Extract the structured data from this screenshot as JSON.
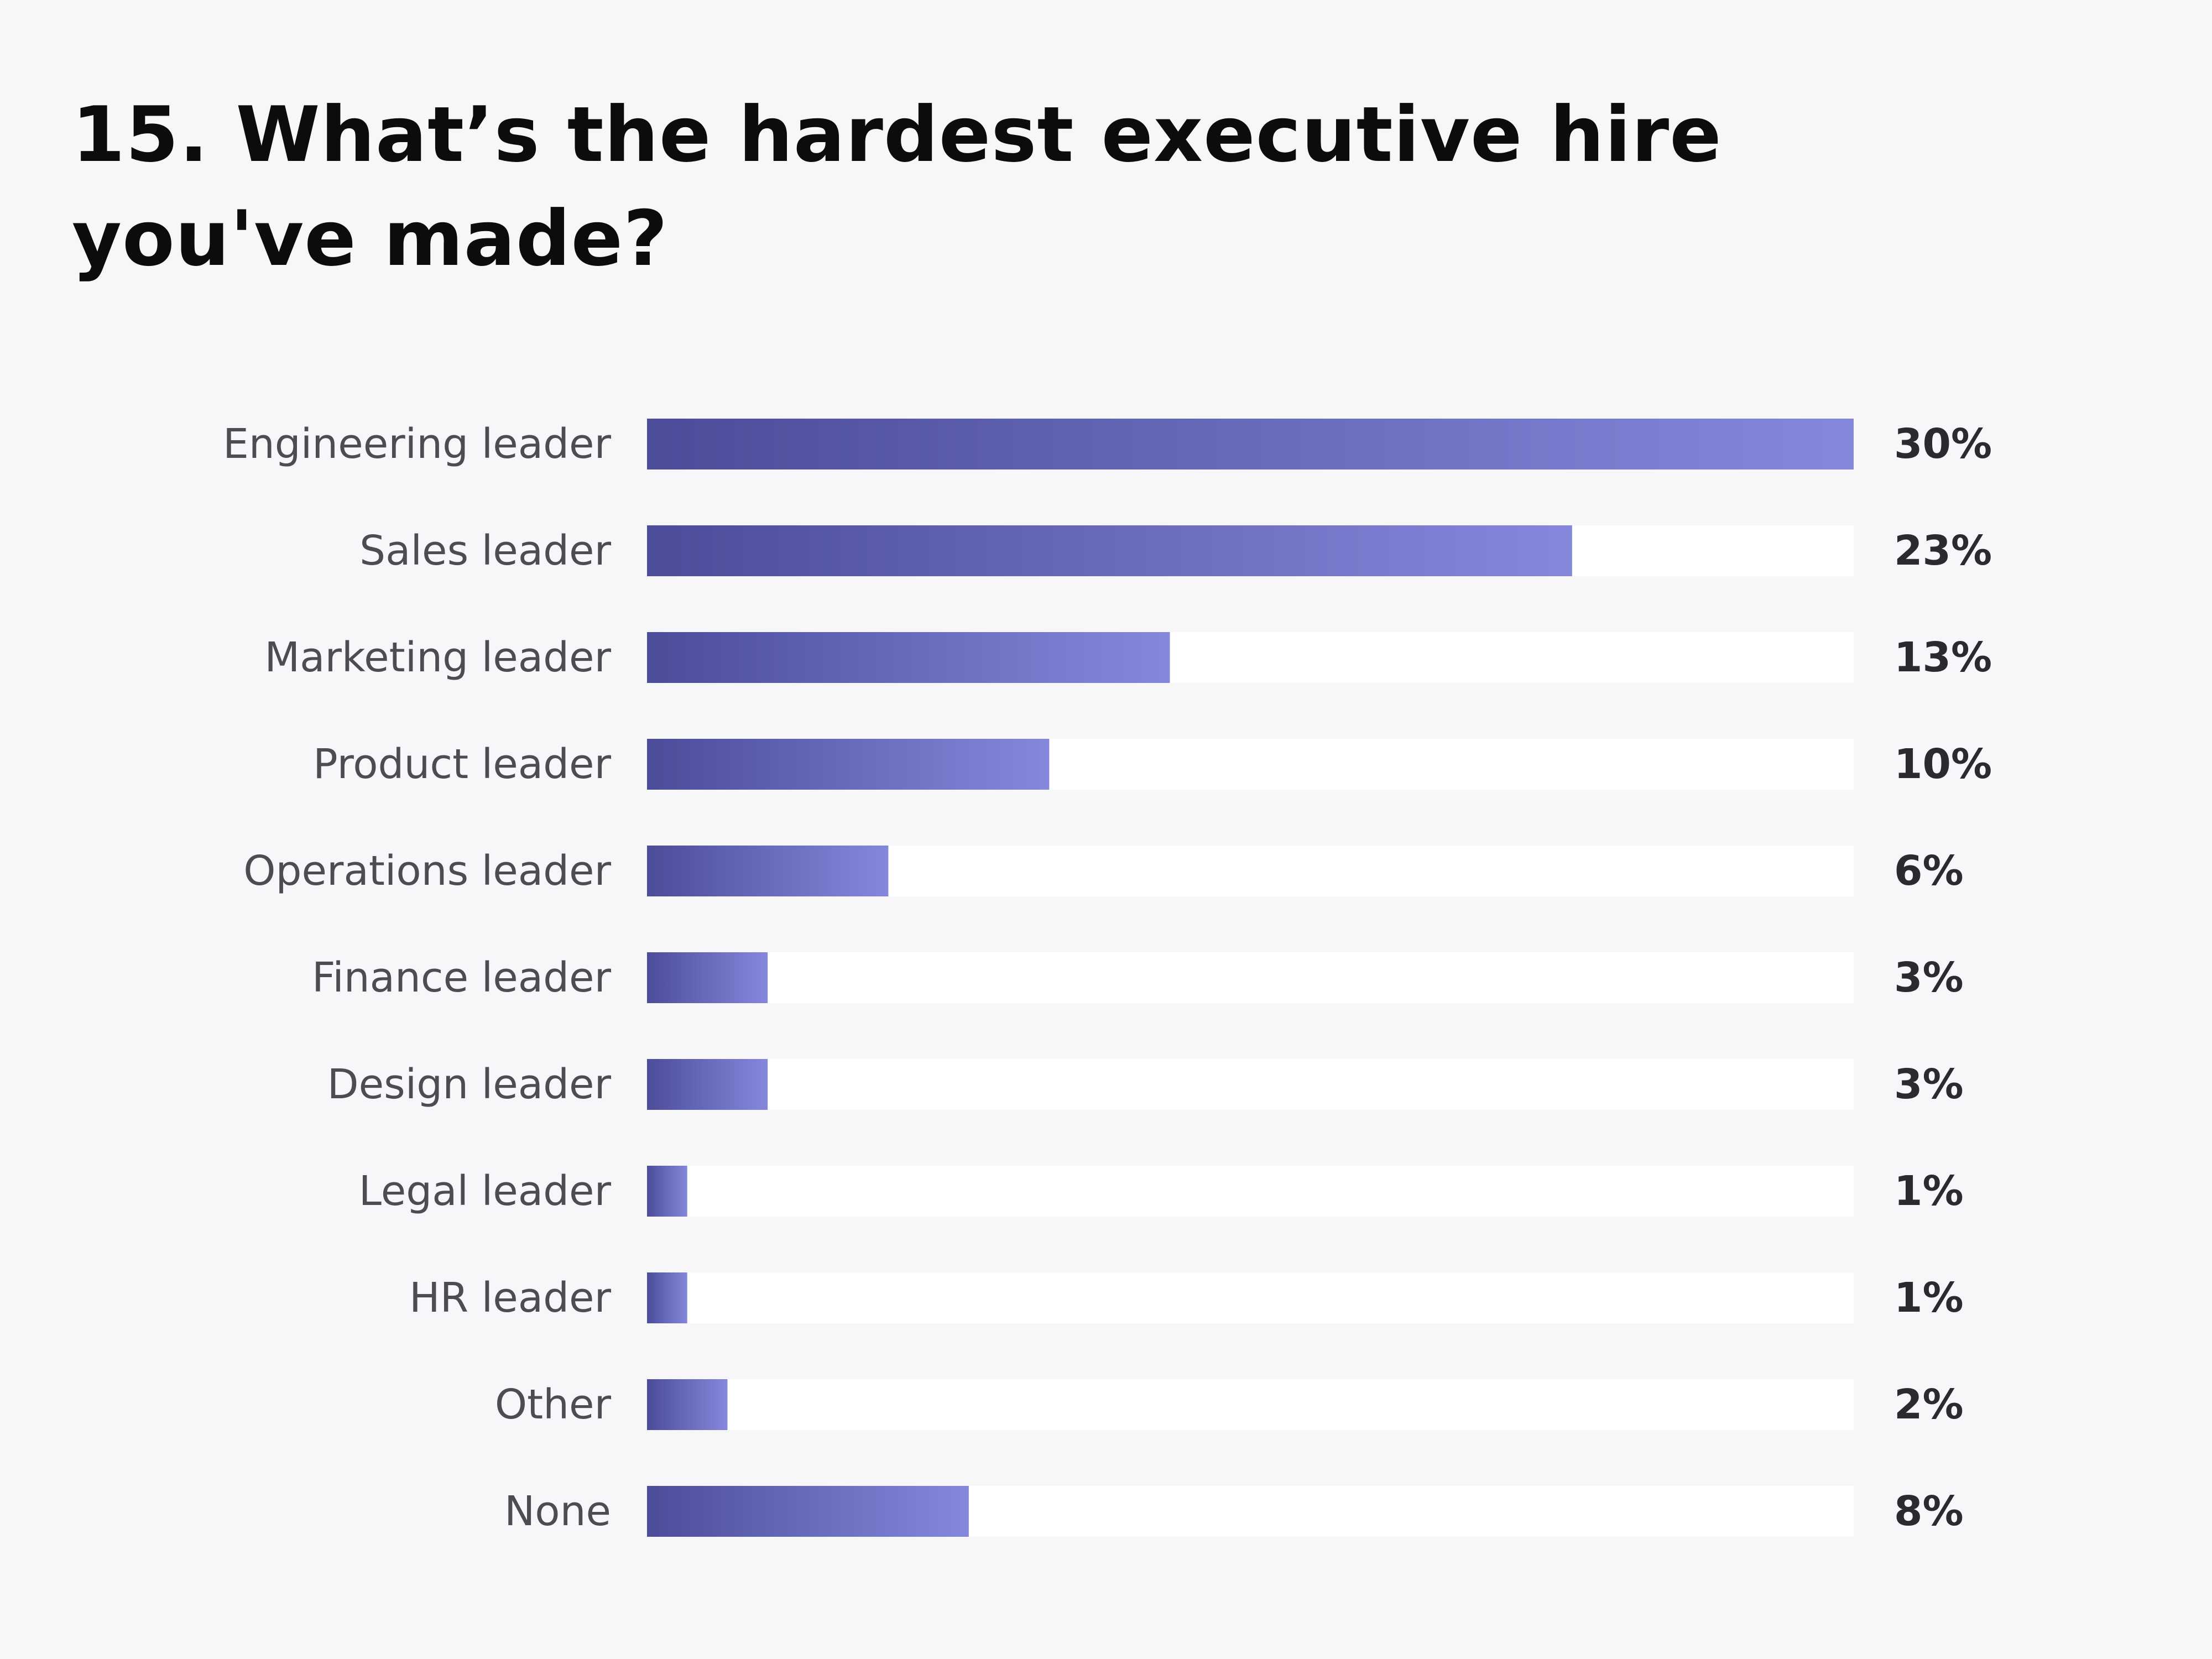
{
  "title": "15. What’s the hardest executive hire you've made?",
  "colors": {
    "background": "#f7f7f9",
    "track": "#ffffff",
    "bar_start": "#4b4d9b",
    "bar_end": "#8587db"
  },
  "chart_data": {
    "type": "bar",
    "orientation": "horizontal",
    "title": "15. What’s the hardest executive hire you've made?",
    "xlabel": "",
    "ylabel": "",
    "xlim": [
      0,
      30
    ],
    "grid": false,
    "legend": "none",
    "categories": [
      "Engineering leader",
      "Sales leader",
      "Marketing leader",
      "Product leader",
      "Operations leader",
      "Finance leader",
      "Design leader",
      "Legal leader",
      "HR leader",
      "Other",
      "None"
    ],
    "values": [
      30,
      23,
      13,
      10,
      6,
      3,
      3,
      1,
      1,
      2,
      8
    ],
    "value_labels": [
      "30%",
      "23%",
      "13%",
      "10%",
      "6%",
      "3%",
      "3%",
      "1%",
      "1%",
      "2%",
      "8%"
    ]
  }
}
